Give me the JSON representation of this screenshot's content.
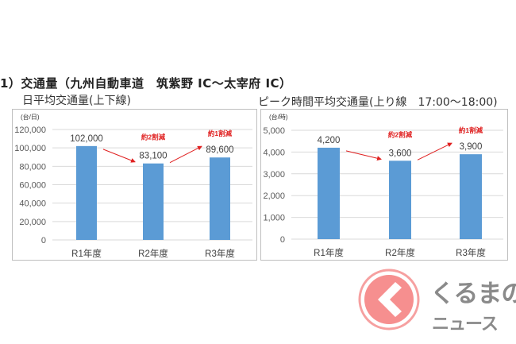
{
  "heading": "1）交通量（九州自動車道　筑紫野 IC～太宰府 IC）",
  "chart_data": [
    {
      "type": "bar",
      "title": "日平均交通量(上下線)",
      "unit_label": "(台/日)",
      "categories": [
        "R1年度",
        "R2年度",
        "R3年度"
      ],
      "values": [
        102000,
        83100,
        89600
      ],
      "data_labels": [
        "102,000",
        "83,100",
        "89,600"
      ],
      "ylim": [
        0,
        120000
      ],
      "yticks": [
        0,
        20000,
        40000,
        60000,
        80000,
        100000,
        120000
      ],
      "ytick_labels": [
        "0",
        "20,000",
        "40,000",
        "60,000",
        "80,000",
        "100,000",
        "120,000"
      ],
      "grid": true,
      "bar_color": "#5b9bd5",
      "annotations": [
        {
          "text": "約2割減",
          "between": [
            "R1年度",
            "R2年度"
          ],
          "direction": "down"
        },
        {
          "text": "約1割減",
          "between": [
            "R2年度",
            "R3年度"
          ],
          "direction": "up"
        }
      ],
      "annotation_color": "#e02020"
    },
    {
      "type": "bar",
      "title": "ピーク時間平均交通量(上り線　17:00～18:00)",
      "unit_label": "(台/時)",
      "categories": [
        "R1年度",
        "R2年度",
        "R3年度"
      ],
      "values": [
        4200,
        3600,
        3900
      ],
      "data_labels": [
        "4,200",
        "3,600",
        "3,900"
      ],
      "ylim": [
        0,
        5000
      ],
      "yticks": [
        0,
        1000,
        2000,
        3000,
        4000,
        5000
      ],
      "ytick_labels": [
        "0",
        "1,000",
        "2,000",
        "3,000",
        "4,000",
        "5,000"
      ],
      "grid": true,
      "bar_color": "#5b9bd5",
      "annotations": [
        {
          "text": "約2割減",
          "between": [
            "R1年度",
            "R2年度"
          ],
          "direction": "down"
        },
        {
          "text": "約1割減",
          "between": [
            "R2年度",
            "R3年度"
          ],
          "direction": "up"
        }
      ],
      "annotation_color": "#e02020"
    }
  ],
  "logo": {
    "line1": "くるまの",
    "line2": "ニュース",
    "color": "#f48a8a"
  }
}
